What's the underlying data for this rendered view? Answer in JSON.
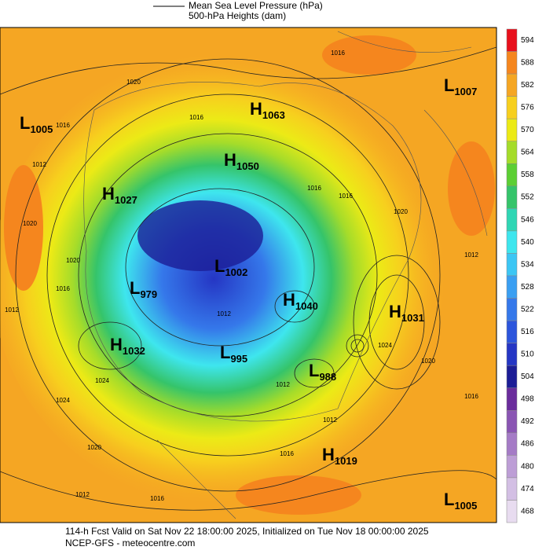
{
  "legend": {
    "line1": "Mean Sea Level Pressure (hPa)",
    "line2": "500-hPa Heights (dam)"
  },
  "colorbar": [
    {
      "label": "594",
      "color": "#e8101c"
    },
    {
      "label": "588",
      "color": "#f5861e"
    },
    {
      "label": "582",
      "color": "#f5a623"
    },
    {
      "label": "576",
      "color": "#f7cf1e"
    },
    {
      "label": "570",
      "color": "#ecea16"
    },
    {
      "label": "564",
      "color": "#a5dc2a"
    },
    {
      "label": "558",
      "color": "#5ccf34"
    },
    {
      "label": "552",
      "color": "#35c46a"
    },
    {
      "label": "546",
      "color": "#2fd6b4"
    },
    {
      "label": "540",
      "color": "#3ee6ee"
    },
    {
      "label": "534",
      "color": "#3cc6f4"
    },
    {
      "label": "528",
      "color": "#3a9ff2"
    },
    {
      "label": "522",
      "color": "#3578ea"
    },
    {
      "label": "516",
      "color": "#2c55dc"
    },
    {
      "label": "510",
      "color": "#2536c4"
    },
    {
      "label": "504",
      "color": "#1c1d96"
    },
    {
      "label": "498",
      "color": "#6a2c9c"
    },
    {
      "label": "492",
      "color": "#8a55b3"
    },
    {
      "label": "486",
      "color": "#a57bc6"
    },
    {
      "label": "480",
      "color": "#bd9ed6"
    },
    {
      "label": "474",
      "color": "#d3bfe4"
    },
    {
      "label": "468",
      "color": "#e8dcf0"
    }
  ],
  "centers": [
    {
      "letter": "L",
      "value": "1005"
    },
    {
      "letter": "H",
      "value": "1063"
    },
    {
      "letter": "L",
      "value": "1007"
    },
    {
      "letter": "H",
      "value": "1050"
    },
    {
      "letter": "H",
      "value": "1027"
    },
    {
      "letter": "L",
      "value": "1002"
    },
    {
      "letter": "L",
      "value": "979"
    },
    {
      "letter": "H",
      "value": "1040"
    },
    {
      "letter": "H",
      "value": "1031"
    },
    {
      "letter": "H",
      "value": "1032"
    },
    {
      "letter": "L",
      "value": "995"
    },
    {
      "letter": "L",
      "value": "988"
    },
    {
      "letter": "H",
      "value": "1019"
    },
    {
      "letter": "L",
      "value": "1005"
    }
  ],
  "isobar_labels": [
    "1016",
    "1020",
    "1016",
    "1012",
    "1020",
    "1020",
    "1016",
    "1012",
    "1016",
    "1024",
    "1024",
    "1020",
    "1012",
    "1016",
    "1016",
    "1020",
    "1024",
    "1016",
    "1012",
    "1012",
    "1012",
    "1016",
    "1020",
    "1016",
    "1012"
  ],
  "footer": {
    "line1": "114-h Fcst Valid on Sat Nov 22 18:00:00 2025, Initialized on Tue Nov 18 00:00:00 2025",
    "line2": "NCEP-GFS - meteocentre.com"
  }
}
